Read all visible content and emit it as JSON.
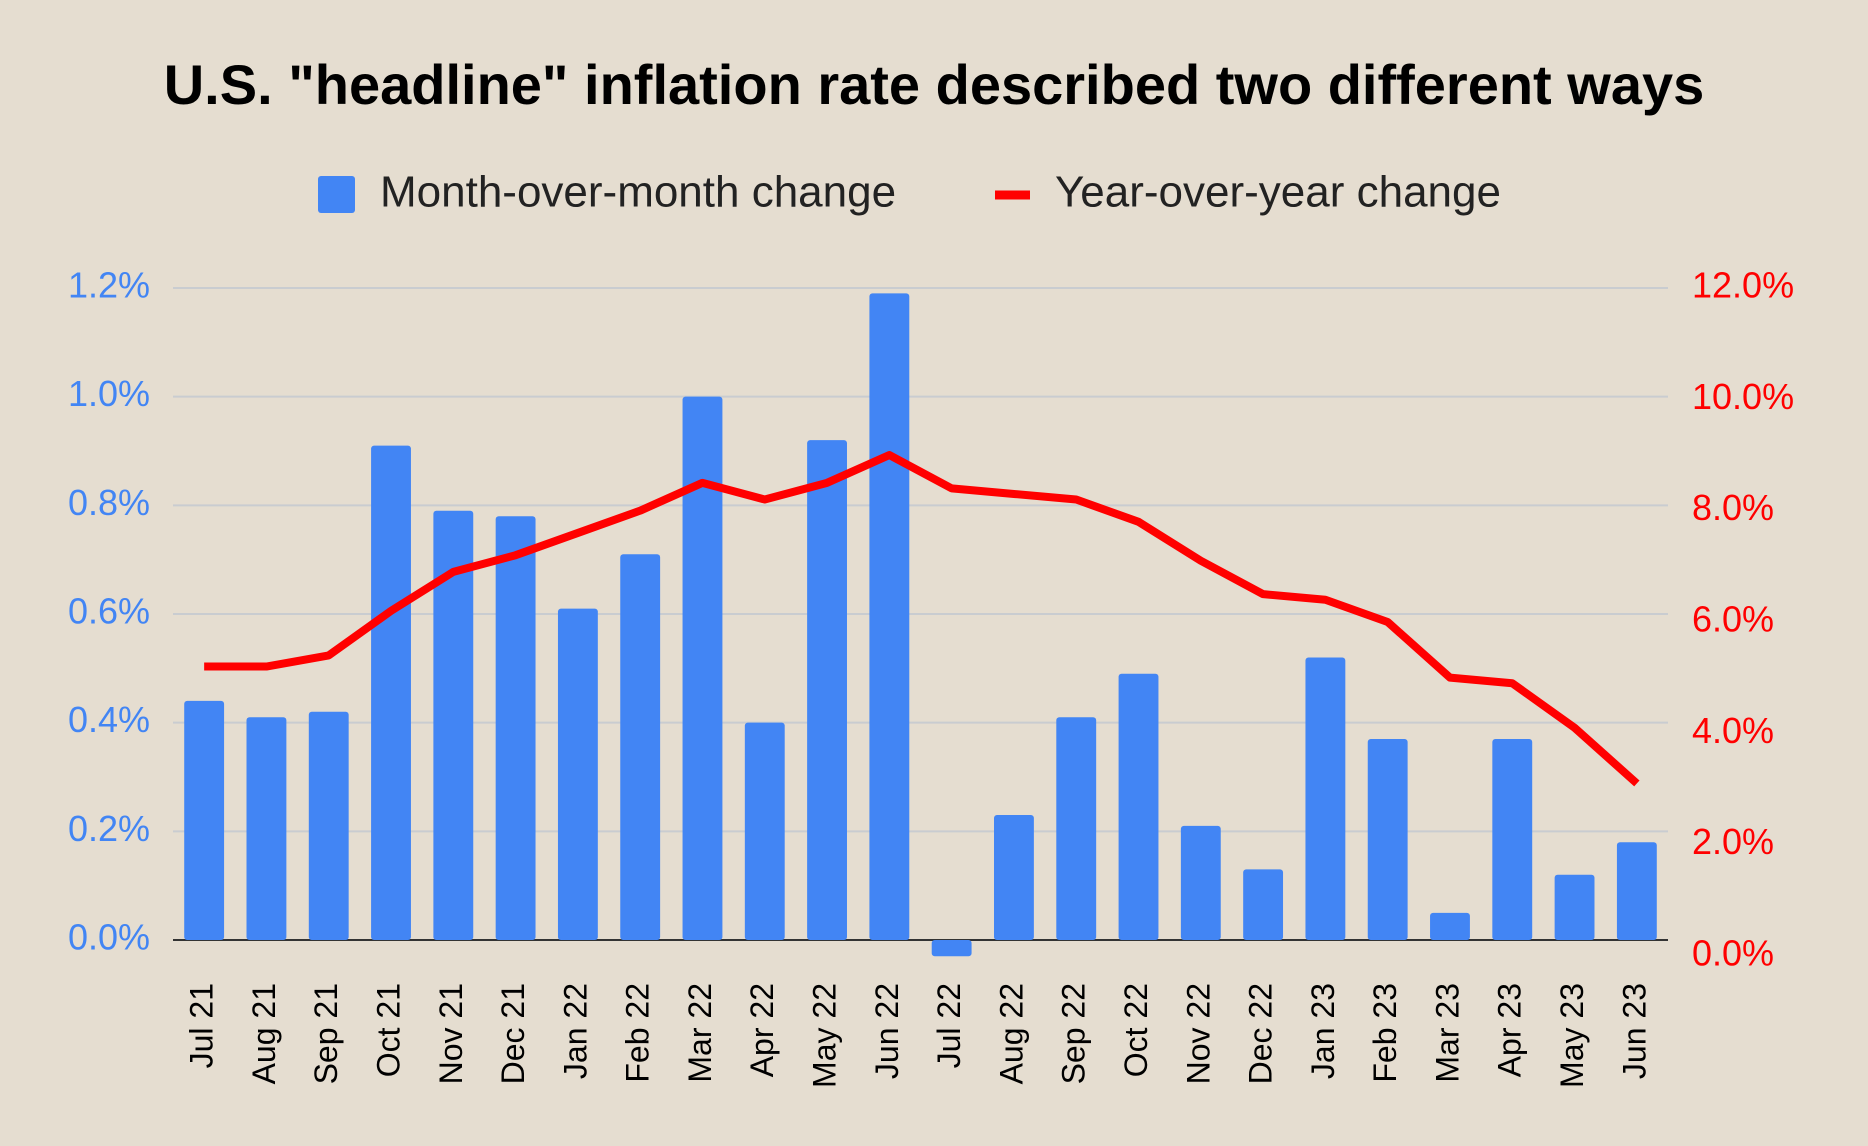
{
  "chart_data": {
    "type": "bar",
    "title": "U.S. \"headline\" inflation rate described two different ways",
    "categories": [
      "Jul 21",
      "Aug 21",
      "Sep 21",
      "Oct 21",
      "Nov 21",
      "Dec 21",
      "Jan 22",
      "Feb 22",
      "Mar 22",
      "Apr 22",
      "May 22",
      "Jun 22",
      "Jul 22",
      "Aug 22",
      "Sep 22",
      "Oct 22",
      "Nov 22",
      "Dec 22",
      "Jan 23",
      "Feb 23",
      "Mar 23",
      "Apr 23",
      "May 23",
      "Jun 23"
    ],
    "series": [
      {
        "name": "Month-over-month change",
        "type": "bar",
        "color": "#4285f4",
        "values": [
          0.44,
          0.41,
          0.42,
          0.91,
          0.79,
          0.78,
          0.61,
          0.71,
          1.0,
          0.4,
          0.92,
          1.19,
          -0.03,
          0.23,
          0.41,
          0.49,
          0.21,
          0.13,
          0.52,
          0.37,
          0.05,
          0.37,
          0.12,
          0.18
        ]
      },
      {
        "name": "Year-over-year change",
        "type": "line",
        "axis": "y2",
        "color": "#ff0000",
        "values": [
          5.2,
          5.2,
          5.4,
          6.2,
          6.9,
          7.2,
          7.6,
          8.0,
          8.5,
          8.2,
          8.5,
          9.0,
          8.4,
          8.3,
          8.2,
          7.8,
          7.1,
          6.5,
          6.4,
          6.0,
          5.0,
          4.9,
          4.1,
          3.1
        ]
      }
    ],
    "ylim": [
      0,
      1.2
    ],
    "yticks": [
      {
        "value": 0,
        "label": "0.0%"
      },
      {
        "value": 0.2,
        "label": "0.2%"
      },
      {
        "value": 0.4,
        "label": "0.4%"
      },
      {
        "value": 0.6,
        "label": "0.6%"
      },
      {
        "value": 0.8,
        "label": "0.8%"
      },
      {
        "value": 1.0,
        "label": "1.0%"
      },
      {
        "value": 1.2,
        "label": "1.2%"
      }
    ],
    "y2lim": [
      0,
      12
    ],
    "y2ticks": [
      {
        "value": 0,
        "label": "0.0%"
      },
      {
        "value": 2,
        "label": "2.0%"
      },
      {
        "value": 4,
        "label": "4.0%"
      },
      {
        "value": 6,
        "label": "6.0%"
      },
      {
        "value": 8,
        "label": "8.0%"
      },
      {
        "value": 10,
        "label": "10.0%"
      },
      {
        "value": 12,
        "label": "12.0%"
      }
    ],
    "grid": true,
    "legend": "top"
  }
}
